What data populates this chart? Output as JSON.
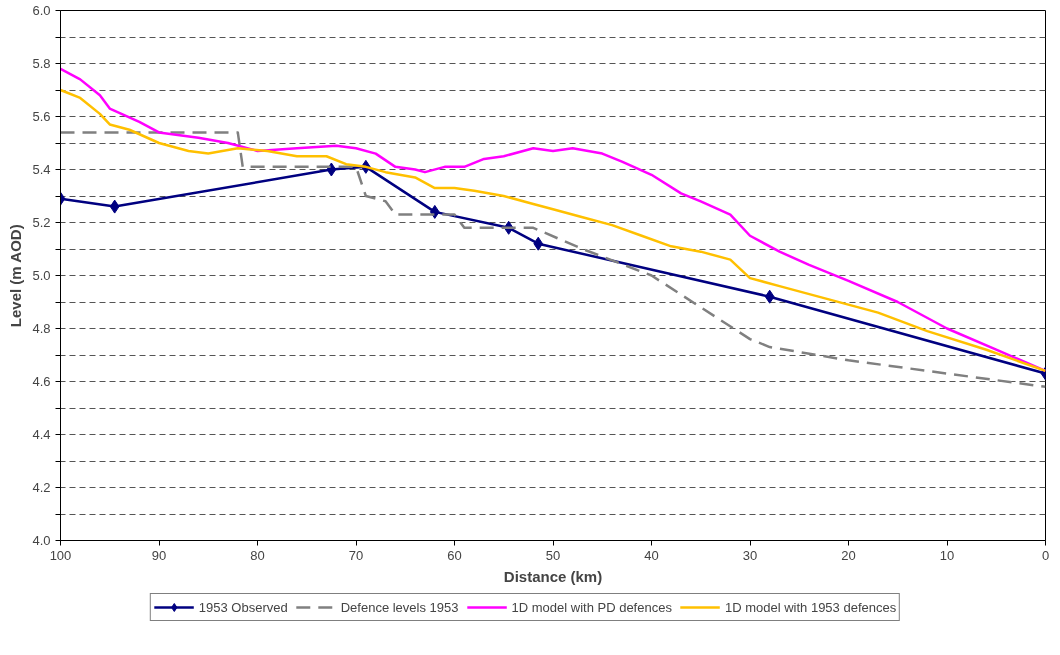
{
  "chart_data": {
    "type": "line",
    "xlabel": "Distance (km)",
    "ylabel": "Level (m AOD)",
    "xlim": [
      100,
      0
    ],
    "ylim": [
      4.0,
      6.0
    ],
    "xticks": [
      100,
      90,
      80,
      70,
      60,
      50,
      40,
      30,
      20,
      10,
      0
    ],
    "yticks": [
      {
        "value": 4,
        "label": "4.0"
      },
      {
        "value": 4.1,
        "label": null
      },
      4.2,
      {
        "value": 4.3,
        "label": null
      },
      4.4,
      {
        "value": 4.5,
        "label": null
      },
      4.6,
      {
        "value": 4.7,
        "label": null
      },
      4.8,
      {
        "value": 4.9,
        "label": null
      },
      {
        "value": 5,
        "label": "5.0"
      },
      {
        "value": 5.1,
        "label": null
      },
      5.2,
      {
        "value": 5.3,
        "label": null
      },
      5.4,
      {
        "value": 5.5,
        "label": null
      },
      5.6,
      {
        "value": 5.7,
        "label": null
      },
      5.8,
      {
        "value": 5.9,
        "label": null
      },
      {
        "value": 6,
        "label": "6.0"
      }
    ],
    "grid": "y",
    "legend": "bottom",
    "series": [
      {
        "name": "1953 Observed",
        "color": "#000080",
        "marker": "diamond",
        "line_style": "solid",
        "x": [
          100,
          94.5,
          72.5,
          69,
          62,
          54.5,
          51.5,
          28,
          0
        ],
        "values": [
          5.29,
          5.26,
          5.4,
          5.41,
          5.24,
          5.18,
          5.12,
          4.92,
          4.63
        ]
      },
      {
        "name": "Defence levels 1953",
        "color": "#808080",
        "marker": "none",
        "line_style": "dashed",
        "x": [
          100,
          82,
          81.5,
          70,
          69,
          67,
          66,
          60,
          59,
          52,
          47,
          40,
          35,
          30,
          28,
          20,
          10,
          0
        ],
        "values": [
          5.54,
          5.54,
          5.41,
          5.41,
          5.3,
          5.28,
          5.23,
          5.23,
          5.18,
          5.18,
          5.1,
          5.0,
          4.88,
          4.76,
          4.73,
          4.68,
          4.63,
          4.58
        ]
      },
      {
        "name": "1D model with PD defences",
        "color": "#ff00ff",
        "marker": "none",
        "line_style": "solid",
        "x": [
          100,
          98,
          96,
          95,
          92,
          90,
          86,
          83,
          80,
          76,
          72,
          70,
          68,
          66,
          64,
          63,
          61,
          59,
          57,
          55,
          52,
          50,
          48,
          45,
          43,
          40,
          37,
          35,
          32,
          30,
          27,
          24,
          20,
          15,
          10,
          5,
          0
        ],
        "values": [
          5.78,
          5.74,
          5.68,
          5.63,
          5.58,
          5.54,
          5.52,
          5.5,
          5.47,
          5.48,
          5.49,
          5.48,
          5.46,
          5.41,
          5.4,
          5.39,
          5.41,
          5.41,
          5.44,
          5.45,
          5.48,
          5.47,
          5.48,
          5.46,
          5.43,
          5.38,
          5.31,
          5.28,
          5.23,
          5.15,
          5.09,
          5.04,
          4.98,
          4.9,
          4.8,
          4.72,
          4.64
        ]
      },
      {
        "name": "1D model with 1953 defences",
        "color": "#ffc000",
        "marker": "none",
        "line_style": "solid",
        "x": [
          100,
          98,
          96,
          95,
          93,
          90,
          87,
          85,
          82,
          79,
          76,
          73,
          71,
          69,
          67,
          64,
          62,
          60,
          58,
          55,
          52,
          50,
          47,
          44,
          41,
          38,
          35,
          32,
          30,
          27,
          22,
          17,
          12,
          6,
          0
        ],
        "values": [
          5.7,
          5.67,
          5.61,
          5.57,
          5.55,
          5.5,
          5.47,
          5.46,
          5.48,
          5.47,
          5.45,
          5.45,
          5.42,
          5.41,
          5.39,
          5.37,
          5.33,
          5.33,
          5.32,
          5.3,
          5.27,
          5.25,
          5.22,
          5.19,
          5.15,
          5.11,
          5.09,
          5.06,
          4.99,
          4.96,
          4.91,
          4.86,
          4.79,
          4.72,
          4.64
        ]
      }
    ]
  }
}
